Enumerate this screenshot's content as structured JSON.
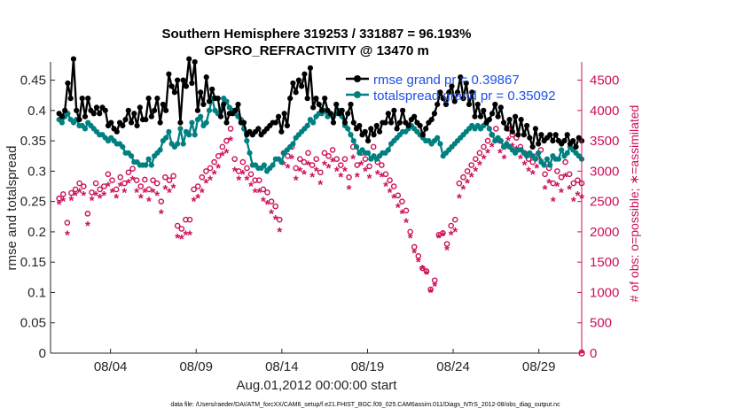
{
  "chart_data": {
    "type": "line",
    "title_line1": "Southern Hemisphere 319253 / 331887 = 96.193%",
    "title_line2": "GPSRO_REFRACTIVITY @ 13470 m",
    "xlabel": "Aug.01,2012 00:00:00 start",
    "ylabel_left": "rmse and totalspread",
    "ylabel_right": "# of obs: o=possible; ∗=assimilated",
    "footer": "data file: /Users/raeder/DAI/ATM_forcXX/CAM6_setup/f.e21.FHIST_BGC.f09_025.CAM6assim.011/Diags_NTrS_2012-08/obs_diag_output.nc",
    "xlim": [
      0.5,
      31.5
    ],
    "ylim_left": [
      0,
      0.48
    ],
    "ylim_right": [
      0,
      4800
    ],
    "x_ticks": [
      {
        "x": 4,
        "label": "08/04"
      },
      {
        "x": 9,
        "label": "08/09"
      },
      {
        "x": 14,
        "label": "08/14"
      },
      {
        "x": 19,
        "label": "08/19"
      },
      {
        "x": 24,
        "label": "08/24"
      },
      {
        "x": 29,
        "label": "08/29"
      }
    ],
    "y_ticks_left": [
      0,
      0.05,
      0.1,
      0.15,
      0.2,
      0.25,
      0.3,
      0.35,
      0.4,
      0.45
    ],
    "y_ticks_right": [
      0,
      500,
      1000,
      1500,
      2000,
      2500,
      3000,
      3500,
      4000,
      4500
    ],
    "colors": {
      "rmse": "#000000",
      "spread": "#008080",
      "obs": "#cc0f5a",
      "legend_text": "#1e50e6",
      "axis": "#262626"
    },
    "legend": [
      {
        "label": "rmse grand pr = 0.39867",
        "series": "rmse"
      },
      {
        "label": "totalspread grand pr = 0.35092",
        "series": "spread"
      }
    ],
    "series": [
      {
        "name": "rmse",
        "axis": "left",
        "values": [
          0.395,
          0.39,
          0.4,
          0.445,
          0.42,
          0.485,
          0.4,
          0.385,
          0.42,
          0.39,
          0.42,
          0.4,
          0.395,
          0.405,
          0.395,
          0.405,
          0.4,
          0.375,
          0.38,
          0.37,
          0.365,
          0.38,
          0.375,
          0.385,
          0.4,
          0.38,
          0.395,
          0.375,
          0.405,
          0.385,
          0.385,
          0.42,
          0.39,
          0.4,
          0.42,
          0.38,
          0.41,
          0.4,
          0.46,
          0.44,
          0.43,
          0.45,
          0.38,
          0.45,
          0.44,
          0.485,
          0.445,
          0.48,
          0.4,
          0.43,
          0.41,
          0.455,
          0.415,
          0.435,
          0.42,
          0.42,
          0.39,
          0.41,
          0.38,
          0.395,
          0.395,
          0.4,
          0.41,
          0.38,
          0.38,
          0.36,
          0.365,
          0.36,
          0.365,
          0.37,
          0.36,
          0.365,
          0.37,
          0.375,
          0.38,
          0.38,
          0.39,
          0.365,
          0.395,
          0.375,
          0.42,
          0.445,
          0.43,
          0.45,
          0.44,
          0.46,
          0.42,
          0.47,
          0.405,
          0.42,
          0.41,
          0.4,
          0.42,
          0.4,
          0.395,
          0.38,
          0.41,
          0.395,
          0.4,
          0.38,
          0.395,
          0.41,
          0.38,
          0.37,
          0.375,
          0.36,
          0.365,
          0.35,
          0.37,
          0.36,
          0.375,
          0.365,
          0.38,
          0.38,
          0.395,
          0.38,
          0.4,
          0.37,
          0.38,
          0.4,
          0.38,
          0.375,
          0.385,
          0.39,
          0.38,
          0.375,
          0.36,
          0.37,
          0.38,
          0.385,
          0.395,
          0.41,
          0.43,
          0.42,
          0.41,
          0.43,
          0.44,
          0.415,
          0.43,
          0.455,
          0.42,
          0.445,
          0.41,
          0.43,
          0.39,
          0.41,
          0.39,
          0.4,
          0.38,
          0.385,
          0.395,
          0.41,
          0.39,
          0.405,
          0.38,
          0.37,
          0.385,
          0.365,
          0.39,
          0.36,
          0.385,
          0.36,
          0.375,
          0.355,
          0.34,
          0.37,
          0.345,
          0.36,
          0.35,
          0.355,
          0.36,
          0.35,
          0.36,
          0.35,
          0.345,
          0.35,
          0.36,
          0.345,
          0.35,
          0.34,
          0.355,
          0.35
        ]
      },
      {
        "name": "spread",
        "axis": "left",
        "values": [
          0.385,
          0.38,
          0.39,
          0.395,
          0.385,
          0.38,
          0.385,
          0.375,
          0.375,
          0.37,
          0.38,
          0.375,
          0.37,
          0.365,
          0.36,
          0.36,
          0.355,
          0.35,
          0.355,
          0.35,
          0.345,
          0.345,
          0.34,
          0.33,
          0.33,
          0.325,
          0.315,
          0.315,
          0.31,
          0.31,
          0.31,
          0.32,
          0.31,
          0.325,
          0.33,
          0.335,
          0.35,
          0.355,
          0.365,
          0.345,
          0.34,
          0.345,
          0.37,
          0.345,
          0.365,
          0.36,
          0.38,
          0.36,
          0.385,
          0.39,
          0.375,
          0.38,
          0.4,
          0.42,
          0.4,
          0.395,
          0.4,
          0.42,
          0.415,
          0.405,
          0.4,
          0.395,
          0.39,
          0.385,
          0.37,
          0.35,
          0.33,
          0.31,
          0.31,
          0.305,
          0.305,
          0.31,
          0.3,
          0.305,
          0.31,
          0.32,
          0.32,
          0.315,
          0.33,
          0.335,
          0.34,
          0.345,
          0.355,
          0.36,
          0.365,
          0.37,
          0.375,
          0.385,
          0.38,
          0.39,
          0.395,
          0.395,
          0.4,
          0.39,
          0.395,
          0.39,
          0.395,
          0.4,
          0.39,
          0.375,
          0.37,
          0.36,
          0.35,
          0.34,
          0.33,
          0.335,
          0.33,
          0.33,
          0.32,
          0.325,
          0.32,
          0.325,
          0.33,
          0.33,
          0.335,
          0.345,
          0.35,
          0.355,
          0.36,
          0.365,
          0.365,
          0.37,
          0.375,
          0.37,
          0.365,
          0.36,
          0.355,
          0.35,
          0.35,
          0.345,
          0.35,
          0.355,
          0.345,
          0.325,
          0.33,
          0.335,
          0.34,
          0.345,
          0.35,
          0.355,
          0.36,
          0.365,
          0.37,
          0.375,
          0.37,
          0.375,
          0.37,
          0.375,
          0.38,
          0.37,
          0.36,
          0.35,
          0.355,
          0.35,
          0.34,
          0.345,
          0.34,
          0.335,
          0.33,
          0.335,
          0.335,
          0.33,
          0.325,
          0.33,
          0.325,
          0.32,
          0.33,
          0.315,
          0.31,
          0.32,
          0.31,
          0.325,
          0.32,
          0.32,
          0.335,
          0.325,
          0.33,
          0.34,
          0.335,
          0.33,
          0.325,
          0.32
        ]
      },
      {
        "name": "obs_possible",
        "axis": "right",
        "marker": "o",
        "values": [
          2550,
          2620,
          2150,
          2640,
          2700,
          2800,
          2750,
          2300,
          2650,
          2800,
          2700,
          2750,
          2950,
          2850,
          2700,
          2900,
          2800,
          2980,
          3040,
          2850,
          2750,
          2860,
          2700,
          2850,
          2800,
          2500,
          2900,
          2850,
          2920,
          2100,
          2050,
          2200,
          2200,
          2700,
          2750,
          2900,
          3000,
          3050,
          3150,
          3250,
          3400,
          3500,
          3700,
          3200,
          3000,
          3150,
          3050,
          2950,
          2850,
          2850,
          2700,
          2650,
          2500,
          2420,
          2200,
          3300,
          3250,
          3400,
          3050,
          3200,
          3150,
          3300,
          3100,
          3200,
          2980,
          3300,
          3250,
          3350,
          3200,
          3100,
          3200,
          2900,
          3400,
          3100,
          3300,
          3200,
          3080,
          3400,
          3150,
          3100,
          2950,
          2850,
          2750,
          2600,
          2500,
          2350,
          2000,
          1750,
          1600,
          1400,
          1350,
          1050,
          1200,
          1950,
          1980,
          1800,
          2100,
          2200,
          2800,
          2900,
          3000,
          3100,
          3200,
          3300,
          3400,
          3500,
          3600,
          3700,
          3500,
          3400,
          3700,
          3600,
          3550,
          3400,
          3300,
          3200,
          3150,
          3250,
          3350,
          2950,
          3050,
          2800,
          3000,
          2900,
          3150,
          2950,
          2800,
          2850,
          2800
        ]
      },
      {
        "name": "obs_assimilated",
        "axis": "right",
        "marker": "*",
        "values": [
          2450,
          2500,
          1950,
          2520,
          2600,
          2650,
          2600,
          2100,
          2520,
          2600,
          2550,
          2600,
          2750,
          2650,
          2550,
          2750,
          2650,
          2800,
          2850,
          2650,
          2550,
          2650,
          2500,
          2650,
          2600,
          2300,
          2700,
          2650,
          2720,
          1900,
          1880,
          1950,
          1950,
          2500,
          2550,
          2650,
          2800,
          2850,
          2950,
          3050,
          3250,
          3300,
          3500,
          3000,
          2850,
          2950,
          2850,
          2750,
          2650,
          2650,
          2500,
          2450,
          2300,
          2200,
          2000,
          3100,
          3050,
          3200,
          2850,
          3000,
          2950,
          3100,
          2900,
          3000,
          2780,
          3100,
          3050,
          3150,
          3000,
          2900,
          3000,
          2700,
          3200,
          2900,
          3100,
          3000,
          2880,
          3200,
          2950,
          2900,
          2750,
          2650,
          2550,
          2400,
          2300,
          2150,
          1900,
          1650,
          1500,
          1380,
          1300,
          1000,
          1100,
          1900,
          1930,
          1700,
          1950,
          2000,
          2550,
          2700,
          2800,
          2900,
          3000,
          3100,
          3200,
          3300,
          3400,
          3500,
          3300,
          3200,
          3500,
          3400,
          3350,
          3200,
          3100,
          3000,
          2950,
          3050,
          3150,
          2700,
          2800,
          2500,
          2750,
          2650,
          2900,
          2700,
          2500,
          2600,
          2550
        ]
      }
    ]
  }
}
